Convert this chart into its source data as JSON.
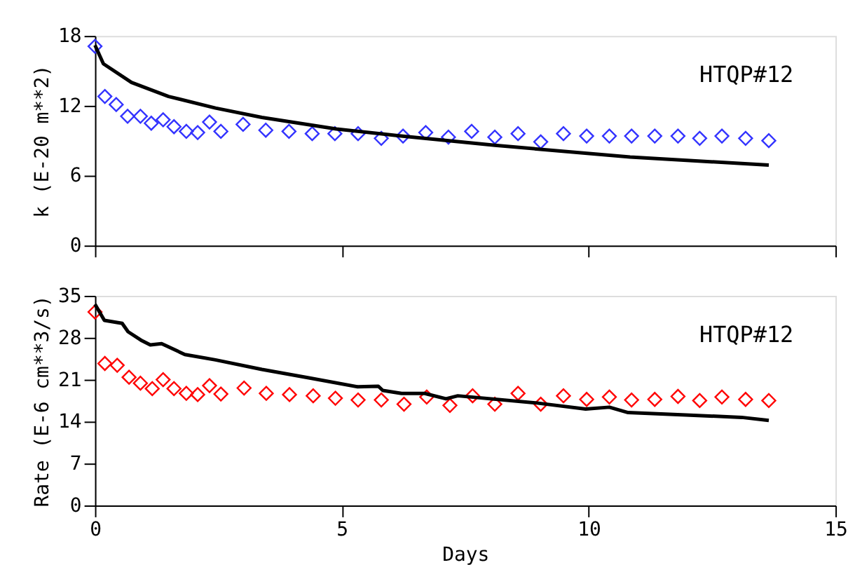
{
  "chart_data": [
    {
      "type": "scatter",
      "ylabel": "k (E-20 m**2)",
      "annotations": [
        "HTQP#12"
      ],
      "xlim": [
        0,
        15
      ],
      "xticks": [
        0,
        5,
        10,
        15
      ],
      "ylim": [
        0,
        18
      ],
      "yticks": [
        0,
        6,
        12,
        18
      ],
      "tick_labels": "y",
      "marker": "diamond",
      "series": [
        {
          "color": "#3333ff",
          "x": [
            0,
            0.2,
            0.43,
            0.66,
            0.92,
            1.14,
            1.38,
            1.6,
            1.85,
            2.08,
            2.32,
            2.55,
            3.0,
            3.46,
            3.93,
            4.4,
            4.86,
            5.33,
            5.8,
            6.24,
            6.7,
            7.16,
            7.63,
            8.1,
            8.57,
            9.03,
            9.49,
            9.96,
            10.42,
            10.87,
            11.34,
            11.81,
            12.25,
            12.7,
            13.18,
            13.65
          ],
          "values": [
            17.1,
            12.8,
            12.1,
            11.1,
            11.1,
            10.5,
            10.8,
            10.2,
            9.8,
            9.7,
            10.6,
            9.8,
            10.4,
            9.9,
            9.8,
            9.6,
            9.6,
            9.6,
            9.2,
            9.4,
            9.7,
            9.3,
            9.8,
            9.3,
            9.6,
            8.9,
            9.6,
            9.4,
            9.4,
            9.4,
            9.4,
            9.4,
            9.2,
            9.4,
            9.2,
            9.0
          ]
        },
        {
          "type": "line",
          "color": "#000000",
          "line_style": "solid",
          "marker": "none",
          "x": [
            0,
            0.17,
            0.74,
            1.49,
            2.44,
            3.38,
            4.89,
            6.2,
            8.1,
            10.84,
            13.65
          ],
          "values": [
            17.2,
            15.6,
            14.0,
            12.8,
            11.8,
            11.0,
            10.0,
            9.4,
            8.6,
            7.6,
            6.9
          ]
        }
      ]
    },
    {
      "type": "scatter",
      "xlabel": "Days",
      "ylabel": "Rate (E-6 cm**3/s)",
      "annotations": [
        "HTQP#12"
      ],
      "xlim": [
        0,
        15
      ],
      "xticks": [
        0,
        5,
        10,
        15
      ],
      "ylim": [
        0,
        35
      ],
      "yticks": [
        0,
        7,
        14,
        21,
        28,
        35
      ],
      "marker": "diamond",
      "series": [
        {
          "color": "#ff0000",
          "x": [
            0,
            0.2,
            0.45,
            0.69,
            0.92,
            1.16,
            1.38,
            1.6,
            1.85,
            2.08,
            2.32,
            2.55,
            3.02,
            3.47,
            3.94,
            4.42,
            4.87,
            5.33,
            5.8,
            6.26,
            6.72,
            7.19,
            7.65,
            8.1,
            8.57,
            9.03,
            9.49,
            9.96,
            10.42,
            10.87,
            11.34,
            11.81,
            12.25,
            12.7,
            13.18,
            13.65
          ],
          "values": [
            32.3,
            23.7,
            23.4,
            21.4,
            20.4,
            19.5,
            21.0,
            19.5,
            18.7,
            18.5,
            20.0,
            18.6,
            19.6,
            18.7,
            18.5,
            18.3,
            17.9,
            17.6,
            17.6,
            16.9,
            18.1,
            16.7,
            18.3,
            16.9,
            18.7,
            16.9,
            18.3,
            17.7,
            18.1,
            17.6,
            17.7,
            18.2,
            17.5,
            18.1,
            17.7,
            17.5
          ]
        },
        {
          "type": "line",
          "color": "#000000",
          "line_style": "solid",
          "marker": "none",
          "x": [
            0,
            0.19,
            0.55,
            0.67,
            0.93,
            1.12,
            1.35,
            1.82,
            2.44,
            3.38,
            4.33,
            5.32,
            5.74,
            5.83,
            6.21,
            6.68,
            7.11,
            7.35,
            8.95,
            9.94,
            10.42,
            10.8,
            11.97,
            13.1,
            13.65
          ],
          "values": [
            33.6,
            30.9,
            30.4,
            29.0,
            27.6,
            26.8,
            27.0,
            25.2,
            24.3,
            22.7,
            21.3,
            19.8,
            19.9,
            19.2,
            18.7,
            18.7,
            17.8,
            18.3,
            17.1,
            16.1,
            16.4,
            15.5,
            15.1,
            14.7,
            14.2
          ]
        }
      ]
    }
  ]
}
